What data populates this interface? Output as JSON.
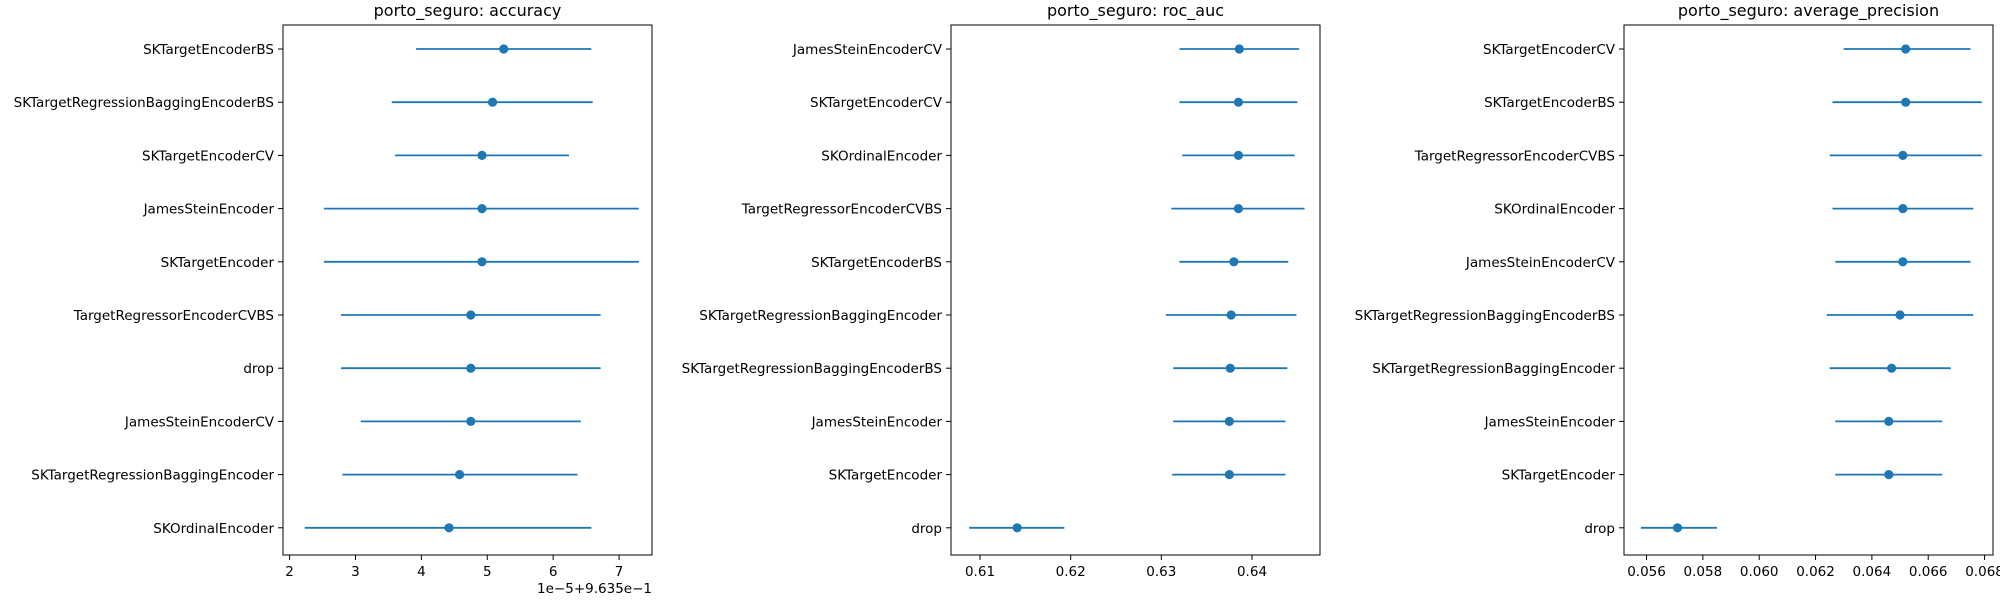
{
  "chart_data": [
    {
      "type": "scatter",
      "title": "porto_seguro: accuracy",
      "xlabel": "",
      "ylabel": "",
      "x_offset_label": "1e−5+9.635e−1",
      "xlim": [
        1.9,
        7.5
      ],
      "xticks": [
        2,
        3,
        4,
        5,
        6,
        7
      ],
      "grid": false,
      "legend": "none",
      "categories": [
        "SKTargetEncoderBS",
        "SKTargetRegressionBaggingEncoderBS",
        "SKTargetEncoderCV",
        "JamesSteinEncoder",
        "SKTargetEncoder",
        "TargetRegressorEncoderCVBS",
        "drop",
        "JamesSteinEncoderCV",
        "SKTargetRegressionBaggingEncoder",
        "SKOrdinalEncoder"
      ],
      "series": [
        {
          "values": [
            5.25,
            5.08,
            4.92,
            4.92,
            4.92,
            4.75,
            4.75,
            4.75,
            4.58,
            4.42
          ],
          "lower": [
            3.92,
            3.55,
            3.6,
            2.52,
            2.52,
            2.78,
            2.78,
            3.08,
            2.8,
            2.23
          ],
          "upper": [
            6.58,
            6.6,
            6.24,
            7.3,
            7.3,
            6.72,
            6.72,
            6.42,
            6.37,
            6.58
          ]
        }
      ]
    },
    {
      "type": "scatter",
      "title": "porto_seguro: roc_auc",
      "xlabel": "",
      "ylabel": "",
      "xlim": [
        0.6068,
        0.6475
      ],
      "xticks": [
        0.61,
        0.62,
        0.63,
        0.64
      ],
      "xtick_labels": [
        "0.61",
        "0.62",
        "0.63",
        "0.64"
      ],
      "grid": false,
      "legend": "none",
      "categories": [
        "JamesSteinEncoderCV",
        "SKTargetEncoderCV",
        "SKOrdinalEncoder",
        "TargetRegressorEncoderCVBS",
        "SKTargetEncoderBS",
        "SKTargetRegressionBaggingEncoder",
        "SKTargetRegressionBaggingEncoderBS",
        "JamesSteinEncoder",
        "SKTargetEncoder",
        "drop"
      ],
      "series": [
        {
          "values": [
            0.6386,
            0.6385,
            0.6385,
            0.6385,
            0.638,
            0.6377,
            0.6376,
            0.6375,
            0.6375,
            0.6141
          ],
          "lower": [
            0.632,
            0.632,
            0.6323,
            0.6311,
            0.632,
            0.6305,
            0.6313,
            0.6313,
            0.6312,
            0.6088
          ],
          "upper": [
            0.6452,
            0.645,
            0.6447,
            0.6458,
            0.644,
            0.6449,
            0.6439,
            0.6437,
            0.6437,
            0.6193
          ]
        }
      ]
    },
    {
      "type": "scatter",
      "title": "porto_seguro: average_precision",
      "xlabel": "",
      "ylabel": "",
      "xlim": [
        0.0552,
        0.0683
      ],
      "xticks": [
        0.056,
        0.058,
        0.06,
        0.062,
        0.064,
        0.066,
        0.068
      ],
      "xtick_labels": [
        "0.056",
        "0.058",
        "0.060",
        "0.062",
        "0.064",
        "0.066",
        "0.068"
      ],
      "grid": false,
      "legend": "none",
      "categories": [
        "SKTargetEncoderCV",
        "SKTargetEncoderBS",
        "TargetRegressorEncoderCVBS",
        "SKOrdinalEncoder",
        "JamesSteinEncoderCV",
        "SKTargetRegressionBaggingEncoderBS",
        "SKTargetRegressionBaggingEncoder",
        "JamesSteinEncoder",
        "SKTargetEncoder",
        "drop"
      ],
      "series": [
        {
          "values": [
            0.0652,
            0.0652,
            0.0651,
            0.0651,
            0.0651,
            0.065,
            0.0647,
            0.0646,
            0.0646,
            0.0571
          ],
          "lower": [
            0.063,
            0.0626,
            0.0625,
            0.0626,
            0.0627,
            0.0624,
            0.0625,
            0.0627,
            0.0627,
            0.0558
          ],
          "upper": [
            0.0675,
            0.0679,
            0.0679,
            0.0676,
            0.0675,
            0.0676,
            0.0668,
            0.0665,
            0.0665,
            0.0585
          ]
        }
      ]
    }
  ],
  "colors": {
    "marker": "#1f77b4",
    "axes": "#000000",
    "background": "#ffffff"
  }
}
